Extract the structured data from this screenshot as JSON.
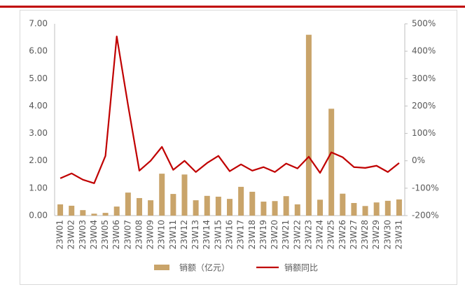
{
  "chart_data": {
    "type": "bar",
    "categories": [
      "23W01",
      "23W02",
      "23W03",
      "23W04",
      "23W05",
      "23W06",
      "23W07",
      "23W08",
      "23W09",
      "23W10",
      "23W11",
      "23W12",
      "23W13",
      "23W14",
      "23W15",
      "23W16",
      "23W17",
      "23W18",
      "23W19",
      "23W20",
      "23W21",
      "23W22",
      "23W23",
      "23W24",
      "23W25",
      "23W26",
      "23W27",
      "23W28",
      "23W29",
      "23W30",
      "23W31"
    ],
    "series": [
      {
        "name": "销额（亿元）",
        "type": "bar",
        "color": "#c9a46a",
        "values": [
          0.41,
          0.36,
          0.2,
          0.07,
          0.1,
          0.33,
          0.84,
          0.64,
          0.56,
          1.53,
          0.79,
          1.5,
          0.56,
          0.72,
          0.69,
          0.61,
          1.05,
          0.87,
          0.51,
          0.53,
          0.71,
          0.41,
          6.6,
          0.58,
          3.9,
          0.8,
          0.46,
          0.35,
          0.48,
          0.54,
          0.59
        ]
      },
      {
        "name": "销额同比",
        "type": "line",
        "axis": "y2",
        "color": "#c00000",
        "values": [
          -64,
          -46,
          -69,
          -82,
          18,
          454,
          203,
          -36,
          0,
          51,
          -33,
          0,
          -41,
          -8,
          18,
          -38,
          -13,
          -36,
          -23,
          -41,
          -10,
          -28,
          15,
          -44,
          31,
          13,
          -23,
          -26,
          -18,
          -41,
          -8
        ]
      }
    ],
    "ylim": [
      0,
      7
    ],
    "yticks": [
      {
        "value": 0,
        "label": "0.00"
      },
      {
        "value": 1,
        "label": "1.00"
      },
      {
        "value": 2,
        "label": "2.00"
      },
      {
        "value": 3,
        "label": "3.00"
      },
      {
        "value": 4,
        "label": "4.00"
      },
      {
        "value": 5,
        "label": "5.00"
      },
      {
        "value": 6,
        "label": "6.00"
      },
      {
        "value": 7,
        "label": "7.00"
      }
    ],
    "y2lim": [
      -200,
      500
    ],
    "y2ticks": [
      {
        "value": -200,
        "label": "-200%"
      },
      {
        "value": -100,
        "label": "-100%"
      },
      {
        "value": 0,
        "label": "0%"
      },
      {
        "value": 100,
        "label": "100%"
      },
      {
        "value": 200,
        "label": "200%"
      },
      {
        "value": 300,
        "label": "300%"
      },
      {
        "value": 400,
        "label": "400%"
      },
      {
        "value": 500,
        "label": "500%"
      }
    ],
    "legend": "bottom"
  }
}
